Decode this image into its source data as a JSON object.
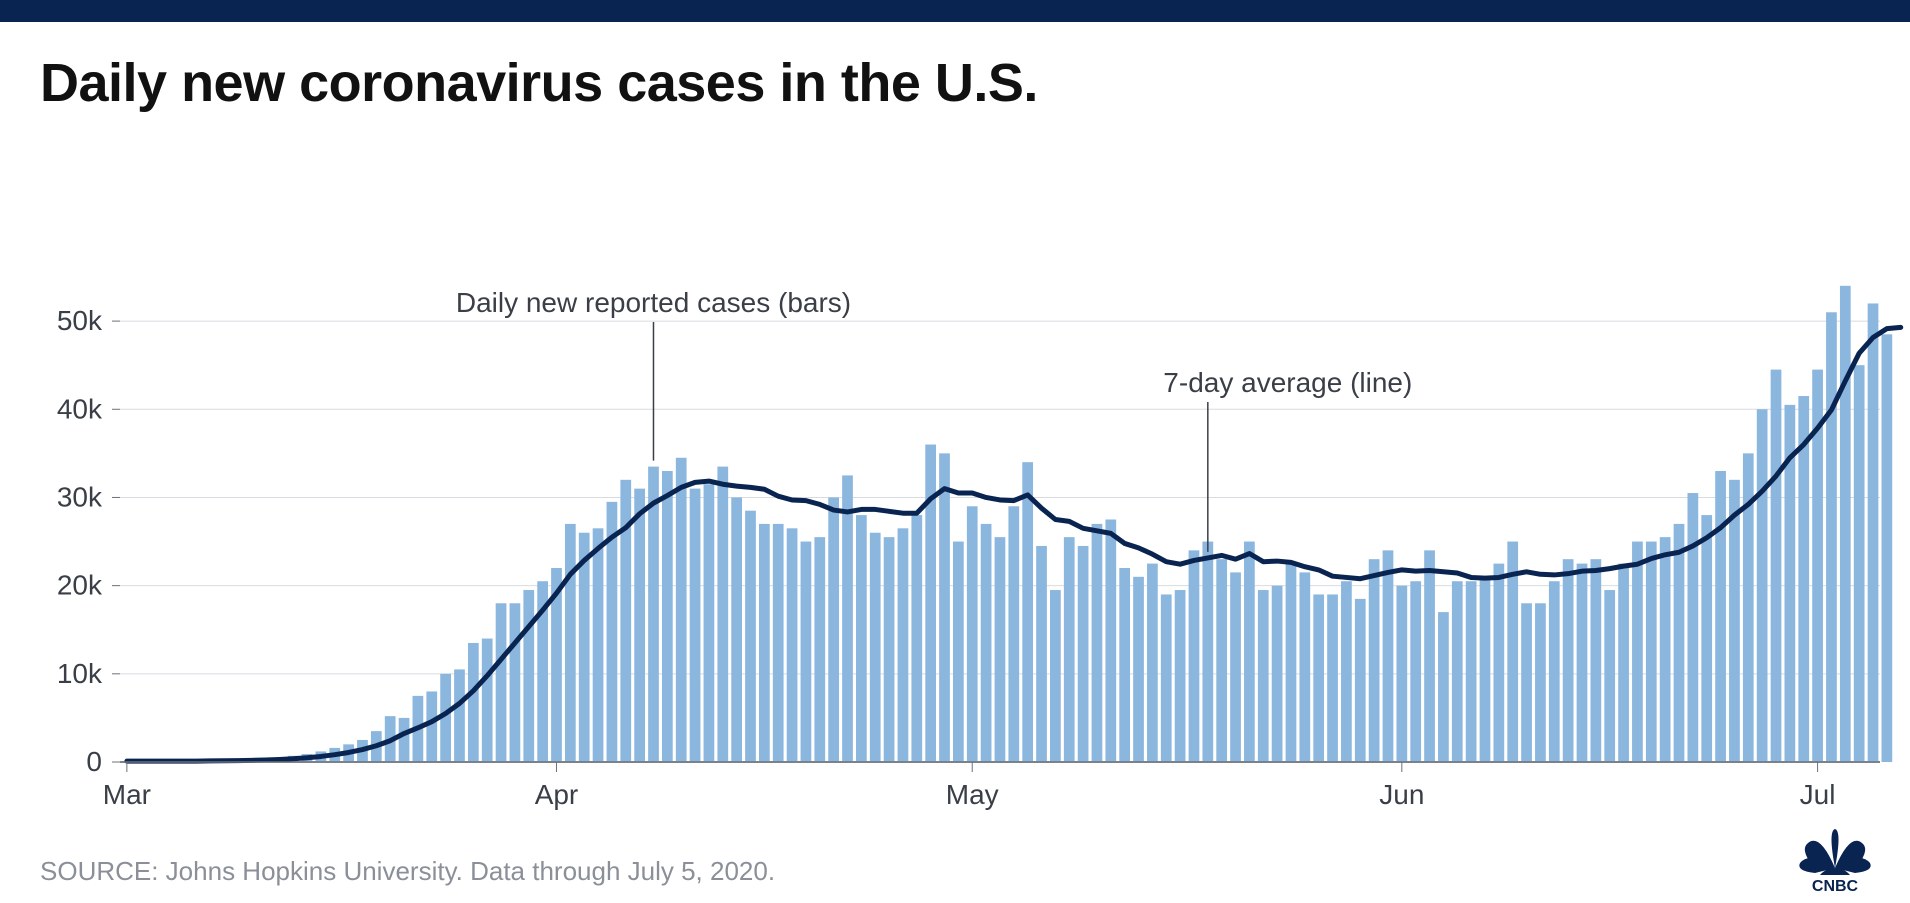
{
  "title": "Daily new coronavirus cases in the U.S.",
  "source": "SOURCE: Johns Hopkins University. Data through July 5, 2020.",
  "logo_text": "CNBC",
  "chart": {
    "type": "bar+line",
    "ylim": [
      0,
      55000
    ],
    "yticks": [
      0,
      10000,
      20000,
      30000,
      40000,
      50000
    ],
    "ytick_labels": [
      "0",
      "10k",
      "20k",
      "30k",
      "40k",
      "50k"
    ],
    "x_months": [
      "Mar",
      "Apr",
      "May",
      "Jun",
      "Jul"
    ],
    "x_month_days": [
      1,
      32,
      62,
      93,
      123
    ],
    "x_start_day": 1,
    "x_end_day": 128,
    "bar_color": "#8bb6de",
    "line_color": "#0a2451",
    "line_width": 5,
    "grid_color": "#d8dbe0",
    "axis_label_color": "#3a3f47",
    "baseline_color": "#6c7078",
    "background_color": "#ffffff",
    "title_fontsize": 54,
    "axis_fontsize": 28,
    "annot_bars_label": "Daily new reported cases (bars)",
    "annot_line_label": "7-day average (line)",
    "annot_bars_day": 39,
    "annot_line_day": 79,
    "bars": [
      100,
      100,
      100,
      100,
      100,
      100,
      150,
      200,
      250,
      300,
      400,
      500,
      700,
      900,
      1200,
      1600,
      2000,
      2500,
      3500,
      5200,
      5000,
      7500,
      8000,
      10000,
      10500,
      13500,
      14000,
      18000,
      18000,
      19500,
      20500,
      22000,
      27000,
      26000,
      26500,
      29500,
      32000,
      31000,
      33500,
      33000,
      34500,
      31000,
      31500,
      33500,
      30000,
      28500,
      27000,
      27000,
      26500,
      25000,
      25500,
      30000,
      32500,
      28000,
      26000,
      25500,
      26500,
      28000,
      36000,
      35000,
      25000,
      29000,
      27000,
      25500,
      29000,
      34000,
      24500,
      19500,
      25500,
      24500,
      27000,
      27500,
      22000,
      21000,
      22500,
      19000,
      19500,
      24000,
      25000,
      23000,
      21500,
      25000,
      19500,
      20000,
      22500,
      21500,
      19000,
      19000,
      20500,
      18500,
      23000,
      24000,
      20000,
      20500,
      24000,
      17000,
      20500,
      20500,
      21000,
      22500,
      25000,
      18000,
      18000,
      20500,
      23000,
      22500,
      23000,
      19500,
      22500,
      25000,
      25000,
      25500,
      27000,
      30500,
      28000,
      33000,
      32000,
      35000,
      40000,
      44500,
      40500,
      41500,
      44500,
      51000,
      54000,
      45000,
      52000,
      48500
    ],
    "line7": [
      100,
      100,
      100,
      100,
      100,
      100,
      121,
      136,
      157,
      186,
      229,
      286,
      364,
      479,
      629,
      829,
      1079,
      1414,
      1843,
      2414,
      3229,
      3871,
      4571,
      5500,
      6643,
      8071,
      9786,
      11643,
      13500,
      15357,
      17214,
      19143,
      21286,
      22857,
      24214,
      25500,
      26571,
      28143,
      29357,
      30214,
      31143,
      31714,
      31857,
      31500,
      31286,
      31143,
      30929,
      30143,
      29714,
      29643,
      29214,
      28571,
      28357,
      28643,
      28643,
      28429,
      28214,
      28214,
      29857,
      31000,
      30500,
      30500,
      30000,
      29714,
      29643,
      30286,
      28786,
      27500,
      27286,
      26500,
      26214,
      25929,
      24786,
      24286,
      23571,
      22714,
      22429,
      22857,
      23143,
      23429,
      23000,
      23643,
      22714,
      22786,
      22643,
      22143,
      21786,
      21071,
      20929,
      20786,
      21143,
      21500,
      21786,
      21643,
      21714,
      21571,
      21429,
      20929,
      20857,
      20929,
      21286,
      21571,
      21286,
      21214,
      21357,
      21643,
      21714,
      21929,
      22214,
      22429,
      23071,
      23500,
      23786,
      24500,
      25429,
      26571,
      28000,
      29214,
      30714,
      32429,
      34500,
      36000,
      37857,
      39929,
      43214,
      46357,
      48143,
      49143,
      49286
    ]
  }
}
